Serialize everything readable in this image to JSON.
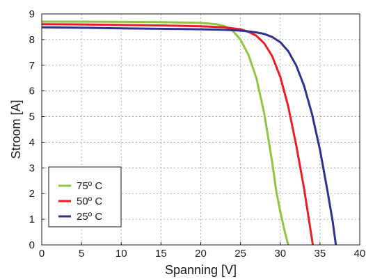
{
  "chart_data": {
    "type": "line",
    "title": "",
    "xlabel": "Spanning [V]",
    "ylabel": "Stroom [A]",
    "xlim": [
      0,
      40
    ],
    "ylim": [
      0,
      9
    ],
    "xticks": [
      0,
      5,
      10,
      15,
      20,
      25,
      30,
      35,
      40
    ],
    "yticks": [
      0,
      1,
      2,
      3,
      4,
      5,
      6,
      7,
      8,
      9
    ],
    "xtick_labels": [
      "0",
      "5",
      "10",
      "15",
      "20",
      "25",
      "30",
      "35",
      "40"
    ],
    "ytick_labels": [
      "0",
      "1",
      "2",
      "3",
      "4",
      "5",
      "6",
      "7",
      "8",
      "9"
    ],
    "grid": true,
    "legend_position": "bottom-left",
    "series": [
      {
        "name": "75º C",
        "color": "#8dc63f",
        "x": [
          0,
          5,
          10,
          15,
          20,
          22,
          23,
          24,
          25,
          26,
          27,
          28,
          29,
          29.5,
          30,
          30.5,
          31
        ],
        "y": [
          8.7,
          8.7,
          8.69,
          8.68,
          8.65,
          8.6,
          8.52,
          8.35,
          8.0,
          7.4,
          6.5,
          5.1,
          3.2,
          2.1,
          1.3,
          0.6,
          0
        ]
      },
      {
        "name": "50º C",
        "color": "#ed1c24",
        "x": [
          0,
          5,
          10,
          15,
          20,
          23,
          25,
          26,
          27,
          28,
          29,
          30,
          31,
          32,
          33,
          33.5,
          34.1
        ],
        "y": [
          8.6,
          8.59,
          8.57,
          8.55,
          8.52,
          8.48,
          8.4,
          8.3,
          8.15,
          7.85,
          7.35,
          6.55,
          5.4,
          3.9,
          2.2,
          1.2,
          0
        ]
      },
      {
        "name": "25º C",
        "color": "#2e3192",
        "x": [
          0,
          5,
          10,
          15,
          20,
          23,
          25,
          26,
          27,
          28,
          29,
          30,
          31,
          32,
          33,
          34,
          35,
          36,
          36.6,
          37
        ],
        "y": [
          8.48,
          8.46,
          8.44,
          8.42,
          8.4,
          8.38,
          8.35,
          8.32,
          8.28,
          8.22,
          8.1,
          7.9,
          7.55,
          7.0,
          6.2,
          5.1,
          3.7,
          2.0,
          0.9,
          0
        ]
      }
    ]
  }
}
